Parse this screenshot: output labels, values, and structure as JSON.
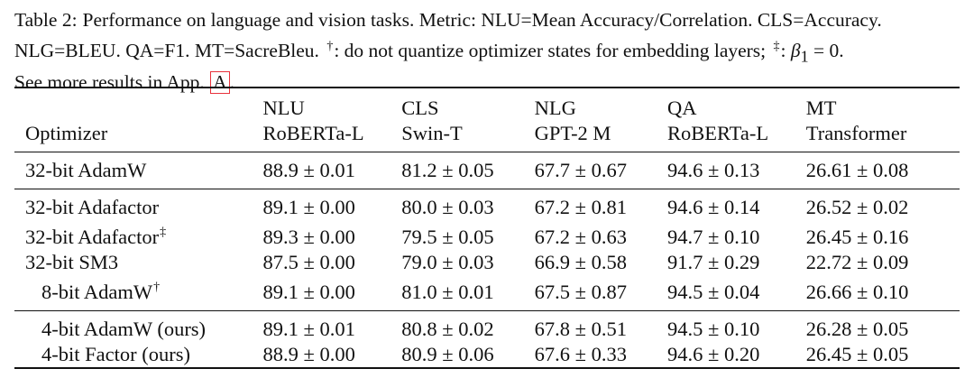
{
  "caption": {
    "label": "Table 2:",
    "line1": "Performance on language and vision tasks. Metric: NLU=Mean Accuracy/Correlation. CLS=Accuracy.",
    "line2a": "NLG=BLEU. QA=F1. MT=SacreBleu.",
    "dagger": "†",
    "line2b": ": do not quantize optimizer states for embedding layers;",
    "ddagger": "‡",
    "line2c": ": ",
    "beta": "β",
    "beta_sub": "1",
    "beta_eq": " = 0.",
    "line3": "See more results in App.",
    "appendix_ref": "A",
    "line3_end": "."
  },
  "table": {
    "columns": [
      {
        "task": "",
        "model": "Optimizer"
      },
      {
        "task": "NLU",
        "model": "RoBERTa-L"
      },
      {
        "task": "CLS",
        "model": "Swin-T"
      },
      {
        "task": "NLG",
        "model": "GPT-2 M"
      },
      {
        "task": "QA",
        "model": "RoBERTa-L"
      },
      {
        "task": "MT",
        "model": "Transformer"
      }
    ],
    "groups": [
      [
        {
          "optimizer": "32-bit AdamW",
          "mark": "",
          "values": [
            "88.9 ± 0.01",
            "81.2 ± 0.05",
            "67.7 ± 0.67",
            "94.6 ± 0.13",
            "26.61 ± 0.08"
          ]
        }
      ],
      [
        {
          "optimizer": "32-bit Adafactor",
          "mark": "",
          "values": [
            "89.1 ± 0.00",
            "80.0 ± 0.03",
            "67.2 ± 0.81",
            "94.6 ± 0.14",
            "26.52 ± 0.02"
          ]
        },
        {
          "optimizer": "32-bit Adafactor",
          "mark": "‡",
          "values": [
            "89.3 ± 0.00",
            "79.5 ± 0.05",
            "67.2 ± 0.63",
            "94.7 ± 0.10",
            "26.45 ± 0.16"
          ]
        },
        {
          "optimizer": "32-bit SM3",
          "mark": "",
          "values": [
            "87.5 ± 0.00",
            "79.0 ± 0.03",
            "66.9 ± 0.58",
            "91.7 ± 0.29",
            "22.72 ± 0.09"
          ]
        },
        {
          "optimizer": "8-bit AdamW",
          "mark": "†",
          "values": [
            "89.1 ± 0.00",
            "81.0 ± 0.01",
            "67.5 ± 0.87",
            "94.5 ± 0.04",
            "26.66 ± 0.10"
          ]
        }
      ],
      [
        {
          "optimizer": "4-bit AdamW (ours)",
          "mark": "",
          "values": [
            "89.1 ± 0.01",
            "80.8 ± 0.02",
            "67.8 ± 0.51",
            "94.5 ± 0.10",
            "26.28 ± 0.05"
          ]
        },
        {
          "optimizer": "4-bit Factor (ours)",
          "mark": "",
          "values": [
            "88.9 ± 0.00",
            "80.9 ± 0.06",
            "67.6 ± 0.33",
            "94.6 ± 0.20",
            "26.45 ± 0.05"
          ]
        }
      ]
    ]
  }
}
